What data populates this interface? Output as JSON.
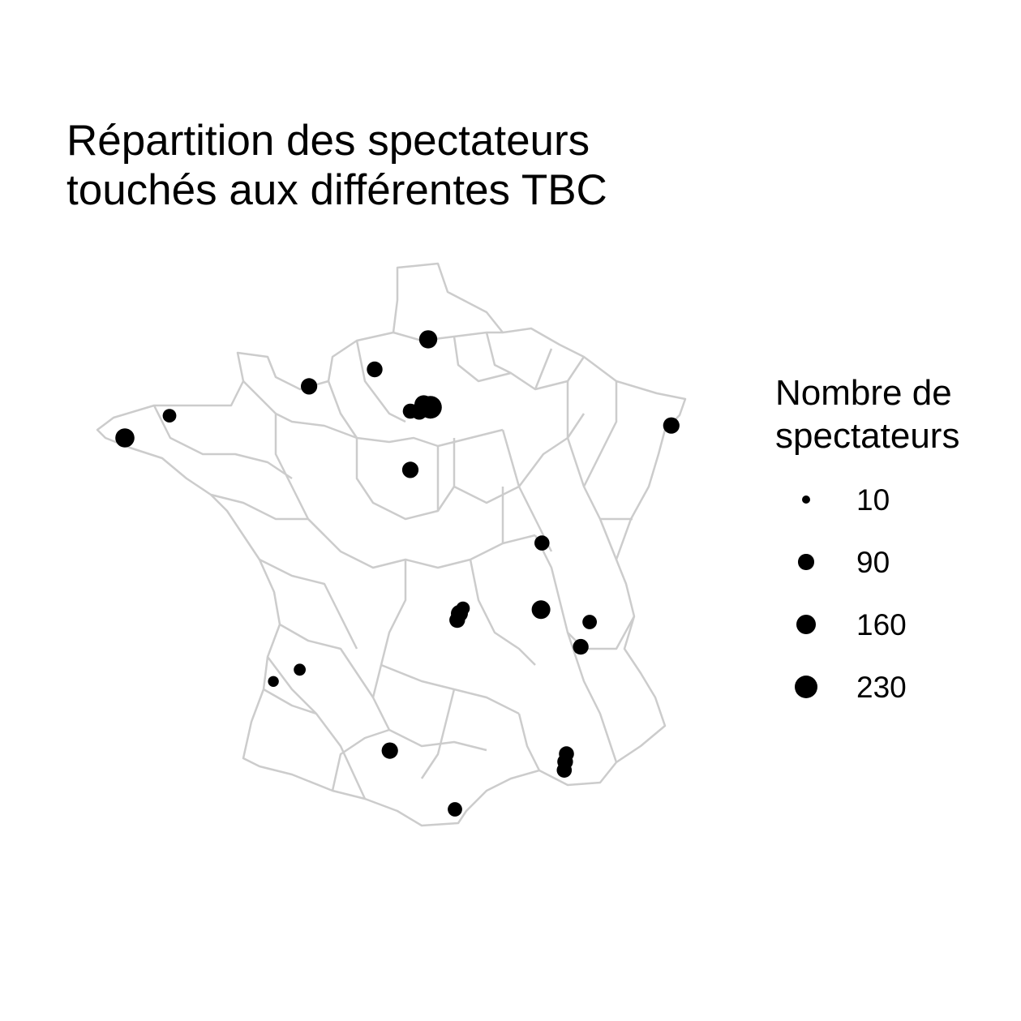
{
  "title": "Répartition des spectateurs\ntouchés aux différentes TBC",
  "map": {
    "region": "France",
    "boundary_style": "départements",
    "boundary_color": "#cccccc",
    "point_color": "#000000",
    "background_color": "#ffffff"
  },
  "legend": {
    "title": "Nombre de\nspectateurs",
    "items": [
      {
        "label": "10",
        "value": 10
      },
      {
        "label": "90",
        "value": 90
      },
      {
        "label": "160",
        "value": 160
      },
      {
        "label": "230",
        "value": 230
      }
    ]
  },
  "chart_data": {
    "type": "scatter",
    "title": "Répartition des spectateurs\ntouchés aux différentes TBC",
    "size_legend_title": "Nombre de spectateurs",
    "size_breaks": [
      10,
      90,
      160,
      230
    ],
    "points": [
      {
        "lon": -4.5,
        "lat": 48.39,
        "value": 150
      },
      {
        "lon": -3.5,
        "lat": 48.73,
        "value": 60
      },
      {
        "lon": -0.37,
        "lat": 49.18,
        "value": 100
      },
      {
        "lon": 1.1,
        "lat": 49.44,
        "value": 90
      },
      {
        "lon": 1.9,
        "lat": 48.8,
        "value": 80
      },
      {
        "lon": 2.1,
        "lat": 48.8,
        "value": 110
      },
      {
        "lon": 2.2,
        "lat": 48.9,
        "value": 140
      },
      {
        "lon": 2.35,
        "lat": 48.86,
        "value": 230
      },
      {
        "lon": 2.3,
        "lat": 49.9,
        "value": 130
      },
      {
        "lon": 1.9,
        "lat": 47.9,
        "value": 100
      },
      {
        "lon": 7.75,
        "lat": 48.58,
        "value": 100
      },
      {
        "lon": 4.85,
        "lat": 46.78,
        "value": 80
      },
      {
        "lon": 4.83,
        "lat": 45.76,
        "value": 140
      },
      {
        "lon": 5.72,
        "lat": 45.19,
        "value": 90
      },
      {
        "lon": 5.92,
        "lat": 45.57,
        "value": 70
      },
      {
        "lon": 3.08,
        "lat": 45.78,
        "value": 60
      },
      {
        "lon": 3.0,
        "lat": 45.7,
        "value": 110
      },
      {
        "lon": 2.95,
        "lat": 45.6,
        "value": 90
      },
      {
        "lon": -0.58,
        "lat": 44.84,
        "value": 40
      },
      {
        "lon": -1.17,
        "lat": 44.66,
        "value": 30
      },
      {
        "lon": 1.44,
        "lat": 43.6,
        "value": 100
      },
      {
        "lon": 2.9,
        "lat": 42.7,
        "value": 70
      },
      {
        "lon": 5.4,
        "lat": 43.55,
        "value": 80
      },
      {
        "lon": 5.37,
        "lat": 43.43,
        "value": 90
      },
      {
        "lon": 5.35,
        "lat": 43.3,
        "value": 80
      }
    ]
  }
}
